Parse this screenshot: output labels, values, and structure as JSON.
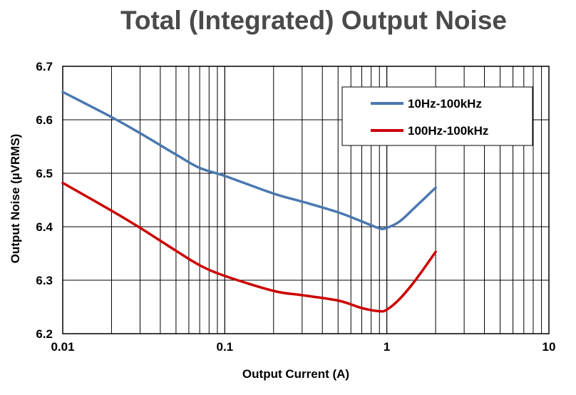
{
  "chart_data": {
    "type": "line",
    "title": "Total (Integrated) Output Noise",
    "xlabel": "Output Current (A)",
    "ylabel": "Output Noise (µVRMS)",
    "xscale": "log",
    "xlim": [
      0.01,
      10
    ],
    "ylim": [
      6.2,
      6.7
    ],
    "x_ticks": [
      "0.01",
      "0.1",
      "1",
      "10"
    ],
    "y_ticks": [
      "6.2",
      "6.3",
      "6.4",
      "6.5",
      "6.6",
      "6.7"
    ],
    "grid": true,
    "legend_position": "top-right",
    "series": [
      {
        "name": "10Hz-100kHz",
        "color": "#4a78b0",
        "points": [
          [
            0.01,
            6.652
          ],
          [
            0.02,
            6.605
          ],
          [
            0.03,
            6.575
          ],
          [
            0.05,
            6.535
          ],
          [
            0.07,
            6.51
          ],
          [
            0.1,
            6.495
          ],
          [
            0.2,
            6.462
          ],
          [
            0.3,
            6.447
          ],
          [
            0.5,
            6.427
          ],
          [
            0.7,
            6.41
          ],
          [
            0.9,
            6.397
          ],
          [
            1.0,
            6.398
          ],
          [
            1.2,
            6.41
          ],
          [
            1.5,
            6.437
          ],
          [
            2.0,
            6.473
          ]
        ]
      },
      {
        "name": "100Hz-100kHz",
        "color": "#cc0000",
        "points": [
          [
            0.01,
            6.482
          ],
          [
            0.02,
            6.43
          ],
          [
            0.03,
            6.398
          ],
          [
            0.05,
            6.355
          ],
          [
            0.07,
            6.328
          ],
          [
            0.1,
            6.308
          ],
          [
            0.2,
            6.28
          ],
          [
            0.3,
            6.272
          ],
          [
            0.5,
            6.262
          ],
          [
            0.7,
            6.248
          ],
          [
            0.9,
            6.242
          ],
          [
            1.0,
            6.245
          ],
          [
            1.2,
            6.265
          ],
          [
            1.5,
            6.3
          ],
          [
            2.0,
            6.353
          ]
        ]
      }
    ]
  }
}
